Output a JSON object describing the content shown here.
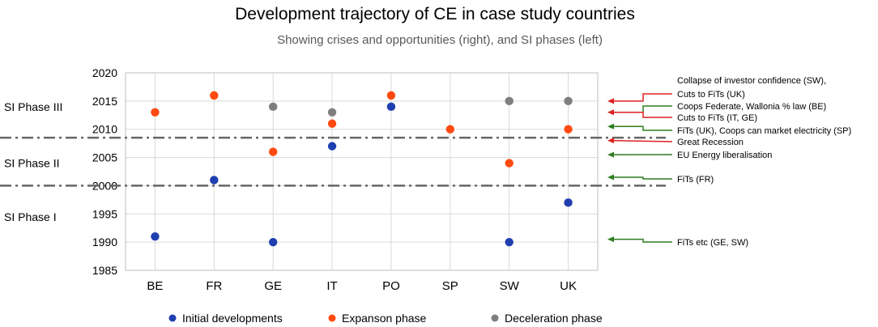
{
  "chart_data": {
    "type": "scatter",
    "title": "Development trajectory of CE in case study countries",
    "subtitle": "Showing crises and opportunities (right), and SI phases (left)",
    "xlabel": "",
    "ylabel": "",
    "ylim": [
      1985,
      2020
    ],
    "yticks": [
      1985,
      1990,
      1995,
      2000,
      2005,
      2010,
      2015,
      2020
    ],
    "grid": true,
    "legend_position": "bottom",
    "categories": [
      "BE",
      "FR",
      "GE",
      "IT",
      "PO",
      "SP",
      "SW",
      "UK"
    ],
    "colors": {
      "initial": "#1f3fb0",
      "expansion": "#ff4a10",
      "deceleration": "#7f7f7f",
      "arrow_green": "#2e7d1e",
      "arrow_red": "#e02020",
      "phase_line": "#666666"
    },
    "series": [
      {
        "name": "Initial developments",
        "values": [
          1991,
          2001,
          1990,
          2007,
          2014,
          null,
          1990,
          1997
        ]
      },
      {
        "name": "Expanson phase",
        "values": [
          2013,
          2016,
          2006,
          2011,
          2016,
          2010,
          2004,
          2010
        ]
      },
      {
        "name": "Deceleration phase",
        "values": [
          null,
          null,
          2014,
          2013,
          null,
          null,
          2015,
          2015
        ]
      }
    ],
    "phase_boundaries": [
      2000,
      2008.5
    ],
    "phases": [
      {
        "label": "SI Phase III",
        "y": 2014
      },
      {
        "label": "SI Phase II",
        "y": 2004
      },
      {
        "label": "SI Phase I",
        "y": 1994.5
      }
    ],
    "annotations": [
      {
        "lines": [
          "Collapse of investor confidence (SW),",
          "Cuts to FiTs (UK)"
        ],
        "y": 2015,
        "kind": "crisis"
      },
      {
        "lines": [
          "Coops Federate, Wallonia % law (BE)"
        ],
        "y": 2013,
        "kind": "opportunity"
      },
      {
        "lines": [
          "Cuts to FiTs (IT, GE)"
        ],
        "y": 2013,
        "kind": "crisis"
      },
      {
        "lines": [
          "FiTs (UK), Coops can market electricity (SP)"
        ],
        "y": 2010.5,
        "kind": "opportunity"
      },
      {
        "lines": [
          "Great Recession"
        ],
        "y": 2008,
        "kind": "crisis"
      },
      {
        "lines": [
          "EU Energy liberalisation"
        ],
        "y": 2005.5,
        "kind": "opportunity"
      },
      {
        "lines": [
          "FiTs (FR)"
        ],
        "y": 2001.5,
        "kind": "opportunity"
      },
      {
        "lines": [
          "FiTs etc (GE, SW)"
        ],
        "y": 1990.5,
        "kind": "opportunity"
      }
    ]
  }
}
